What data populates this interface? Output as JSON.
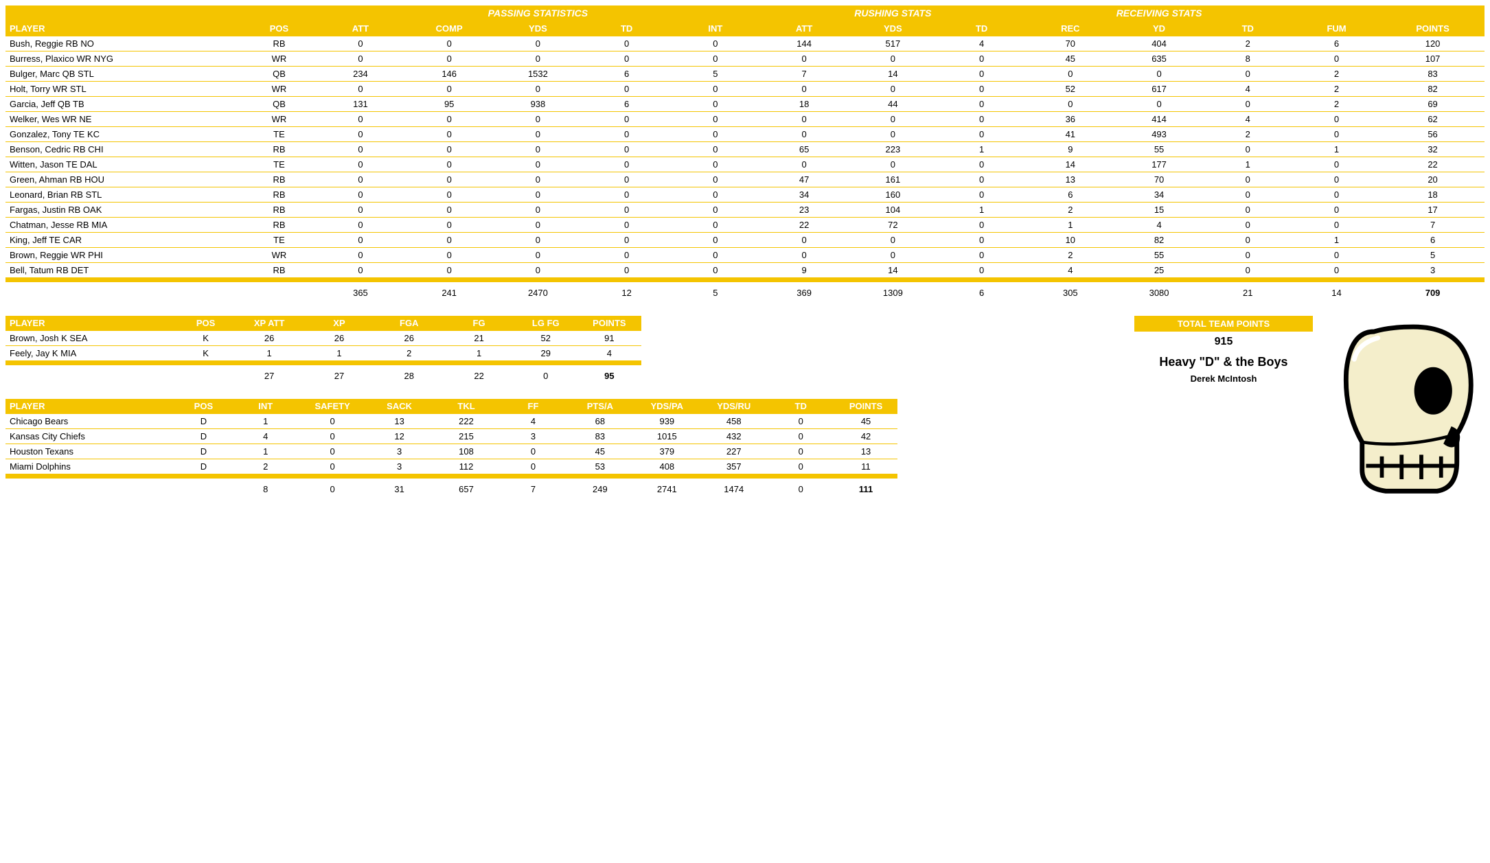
{
  "colors": {
    "accent": "#f4c400",
    "header_text": "#ffffff",
    "text": "#000000",
    "background": "#ffffff"
  },
  "offense": {
    "groups": {
      "passing": "PASSING STATISTICS",
      "rushing": "RUSHING STATS",
      "receiving": "RECEIVING STATS"
    },
    "columns": [
      "PLAYER",
      "POS",
      "ATT",
      "COMP",
      "YDS",
      "TD",
      "INT",
      "ATT",
      "YDS",
      "TD",
      "REC",
      "YD",
      "TD",
      "FUM",
      "POINTS"
    ],
    "col_widths_pct": [
      16,
      5,
      6,
      6,
      6,
      6,
      6,
      6,
      6,
      6,
      6,
      6,
      6,
      6,
      7
    ],
    "rows": [
      [
        "Bush, Reggie RB NO",
        "RB",
        0,
        0,
        0,
        0,
        0,
        144,
        517,
        4,
        70,
        404,
        2,
        6,
        120
      ],
      [
        "Burress, Plaxico WR NYG",
        "WR",
        0,
        0,
        0,
        0,
        0,
        0,
        0,
        0,
        45,
        635,
        8,
        0,
        107
      ],
      [
        "Bulger, Marc QB STL",
        "QB",
        234,
        146,
        1532,
        6,
        5,
        7,
        14,
        0,
        0,
        0,
        0,
        2,
        83
      ],
      [
        "Holt, Torry WR STL",
        "WR",
        0,
        0,
        0,
        0,
        0,
        0,
        0,
        0,
        52,
        617,
        4,
        2,
        82
      ],
      [
        "Garcia, Jeff QB TB",
        "QB",
        131,
        95,
        938,
        6,
        0,
        18,
        44,
        0,
        0,
        0,
        0,
        2,
        69
      ],
      [
        "Welker, Wes WR NE",
        "WR",
        0,
        0,
        0,
        0,
        0,
        0,
        0,
        0,
        36,
        414,
        4,
        0,
        62
      ],
      [
        "Gonzalez, Tony TE KC",
        "TE",
        0,
        0,
        0,
        0,
        0,
        0,
        0,
        0,
        41,
        493,
        2,
        0,
        56
      ],
      [
        "Benson, Cedric RB CHI",
        "RB",
        0,
        0,
        0,
        0,
        0,
        65,
        223,
        1,
        9,
        55,
        0,
        1,
        32
      ],
      [
        "Witten, Jason TE DAL",
        "TE",
        0,
        0,
        0,
        0,
        0,
        0,
        0,
        0,
        14,
        177,
        1,
        0,
        22
      ],
      [
        "Green, Ahman RB HOU",
        "RB",
        0,
        0,
        0,
        0,
        0,
        47,
        161,
        0,
        13,
        70,
        0,
        0,
        20
      ],
      [
        "Leonard, Brian RB STL",
        "RB",
        0,
        0,
        0,
        0,
        0,
        34,
        160,
        0,
        6,
        34,
        0,
        0,
        18
      ],
      [
        "Fargas, Justin RB OAK",
        "RB",
        0,
        0,
        0,
        0,
        0,
        23,
        104,
        1,
        2,
        15,
        0,
        0,
        17
      ],
      [
        "Chatman, Jesse RB MIA",
        "RB",
        0,
        0,
        0,
        0,
        0,
        22,
        72,
        0,
        1,
        4,
        0,
        0,
        7
      ],
      [
        "King, Jeff TE CAR",
        "TE",
        0,
        0,
        0,
        0,
        0,
        0,
        0,
        0,
        10,
        82,
        0,
        1,
        6
      ],
      [
        "Brown, Reggie WR PHI",
        "WR",
        0,
        0,
        0,
        0,
        0,
        0,
        0,
        0,
        2,
        55,
        0,
        0,
        5
      ],
      [
        "Bell, Tatum RB DET",
        "RB",
        0,
        0,
        0,
        0,
        0,
        9,
        14,
        0,
        4,
        25,
        0,
        0,
        3
      ]
    ],
    "totals": [
      "",
      "",
      365,
      241,
      2470,
      12,
      5,
      369,
      1309,
      6,
      305,
      3080,
      21,
      14,
      709
    ]
  },
  "kicking": {
    "columns": [
      "PLAYER",
      "POS",
      "XP ATT",
      "XP",
      "FGA",
      "FG",
      "LG FG",
      "POINTS"
    ],
    "col_widths_pct": [
      27,
      9,
      11,
      11,
      11,
      11,
      10,
      10
    ],
    "rows": [
      [
        "Brown, Josh K SEA",
        "K",
        26,
        26,
        26,
        21,
        52,
        91
      ],
      [
        "Feely, Jay K MIA",
        "K",
        1,
        1,
        2,
        1,
        29,
        4
      ]
    ],
    "totals": [
      "",
      "",
      27,
      27,
      28,
      22,
      0,
      95
    ]
  },
  "defense": {
    "columns": [
      "PLAYER",
      "POS",
      "INT",
      "SAFETY",
      "SACK",
      "TKL",
      "FF",
      "PTS/A",
      "YDS/PA",
      "YDS/RU",
      "TD",
      "POINTS"
    ],
    "col_widths_pct": [
      19,
      6.4,
      7.5,
      7.5,
      7.5,
      7.5,
      7.5,
      7.5,
      7.5,
      7.5,
      7.5,
      7.1
    ],
    "rows": [
      [
        "Chicago Bears",
        "D",
        1,
        0,
        13,
        222,
        4,
        68,
        939,
        458,
        0,
        45
      ],
      [
        "Kansas City Chiefs",
        "D",
        4,
        0,
        12,
        215,
        3,
        83,
        1015,
        432,
        0,
        42
      ],
      [
        "Houston Texans",
        "D",
        1,
        0,
        3,
        108,
        0,
        45,
        379,
        227,
        0,
        13
      ],
      [
        "Miami Dolphins",
        "D",
        2,
        0,
        3,
        112,
        0,
        53,
        408,
        357,
        0,
        11
      ]
    ],
    "totals": [
      "",
      "",
      8,
      0,
      31,
      657,
      7,
      249,
      2741,
      1474,
      0,
      111
    ]
  },
  "team": {
    "header": "TOTAL TEAM POINTS",
    "points": 915,
    "name": "Heavy \"D\" & the Boys",
    "owner": "Derek McIntosh"
  }
}
